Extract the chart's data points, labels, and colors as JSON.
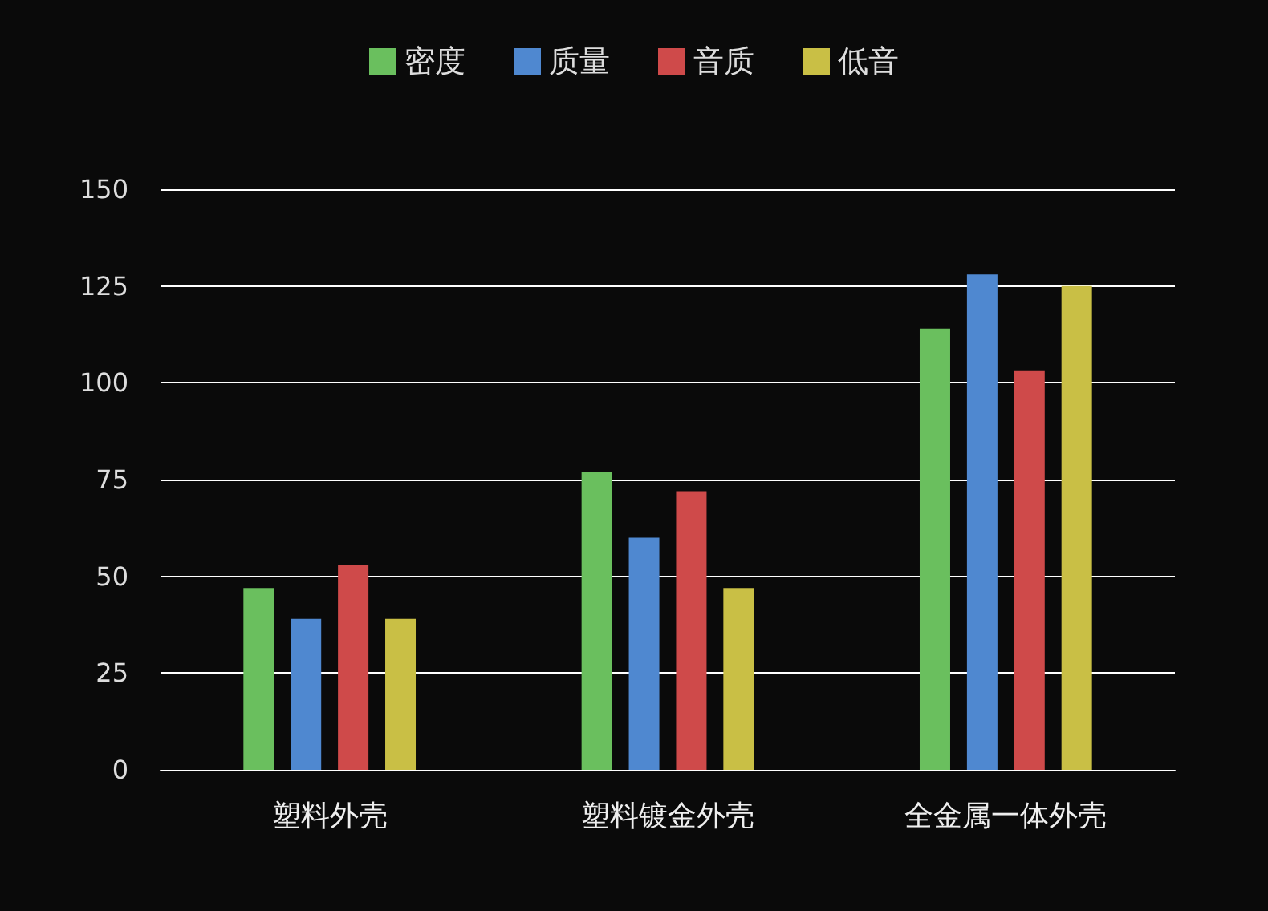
{
  "chart_data": {
    "type": "bar",
    "categories": [
      "塑料外壳",
      "塑料镀金外壳",
      "全金属一体外壳"
    ],
    "series": [
      {
        "name": "密度",
        "color": "#6abf5e",
        "values": [
          47,
          77,
          114
        ]
      },
      {
        "name": "质量",
        "color": "#4f88d0",
        "values": [
          39,
          60,
          128
        ]
      },
      {
        "name": "音质",
        "color": "#cf4a4a",
        "values": [
          53,
          72,
          103
        ]
      },
      {
        "name": "低音",
        "color": "#c9bf45",
        "values": [
          39,
          47,
          125
        ]
      }
    ],
    "ylim": [
      0,
      150
    ],
    "yticks": [
      0,
      25,
      50,
      75,
      100,
      125,
      150
    ],
    "grid": "y",
    "legend": "top"
  }
}
